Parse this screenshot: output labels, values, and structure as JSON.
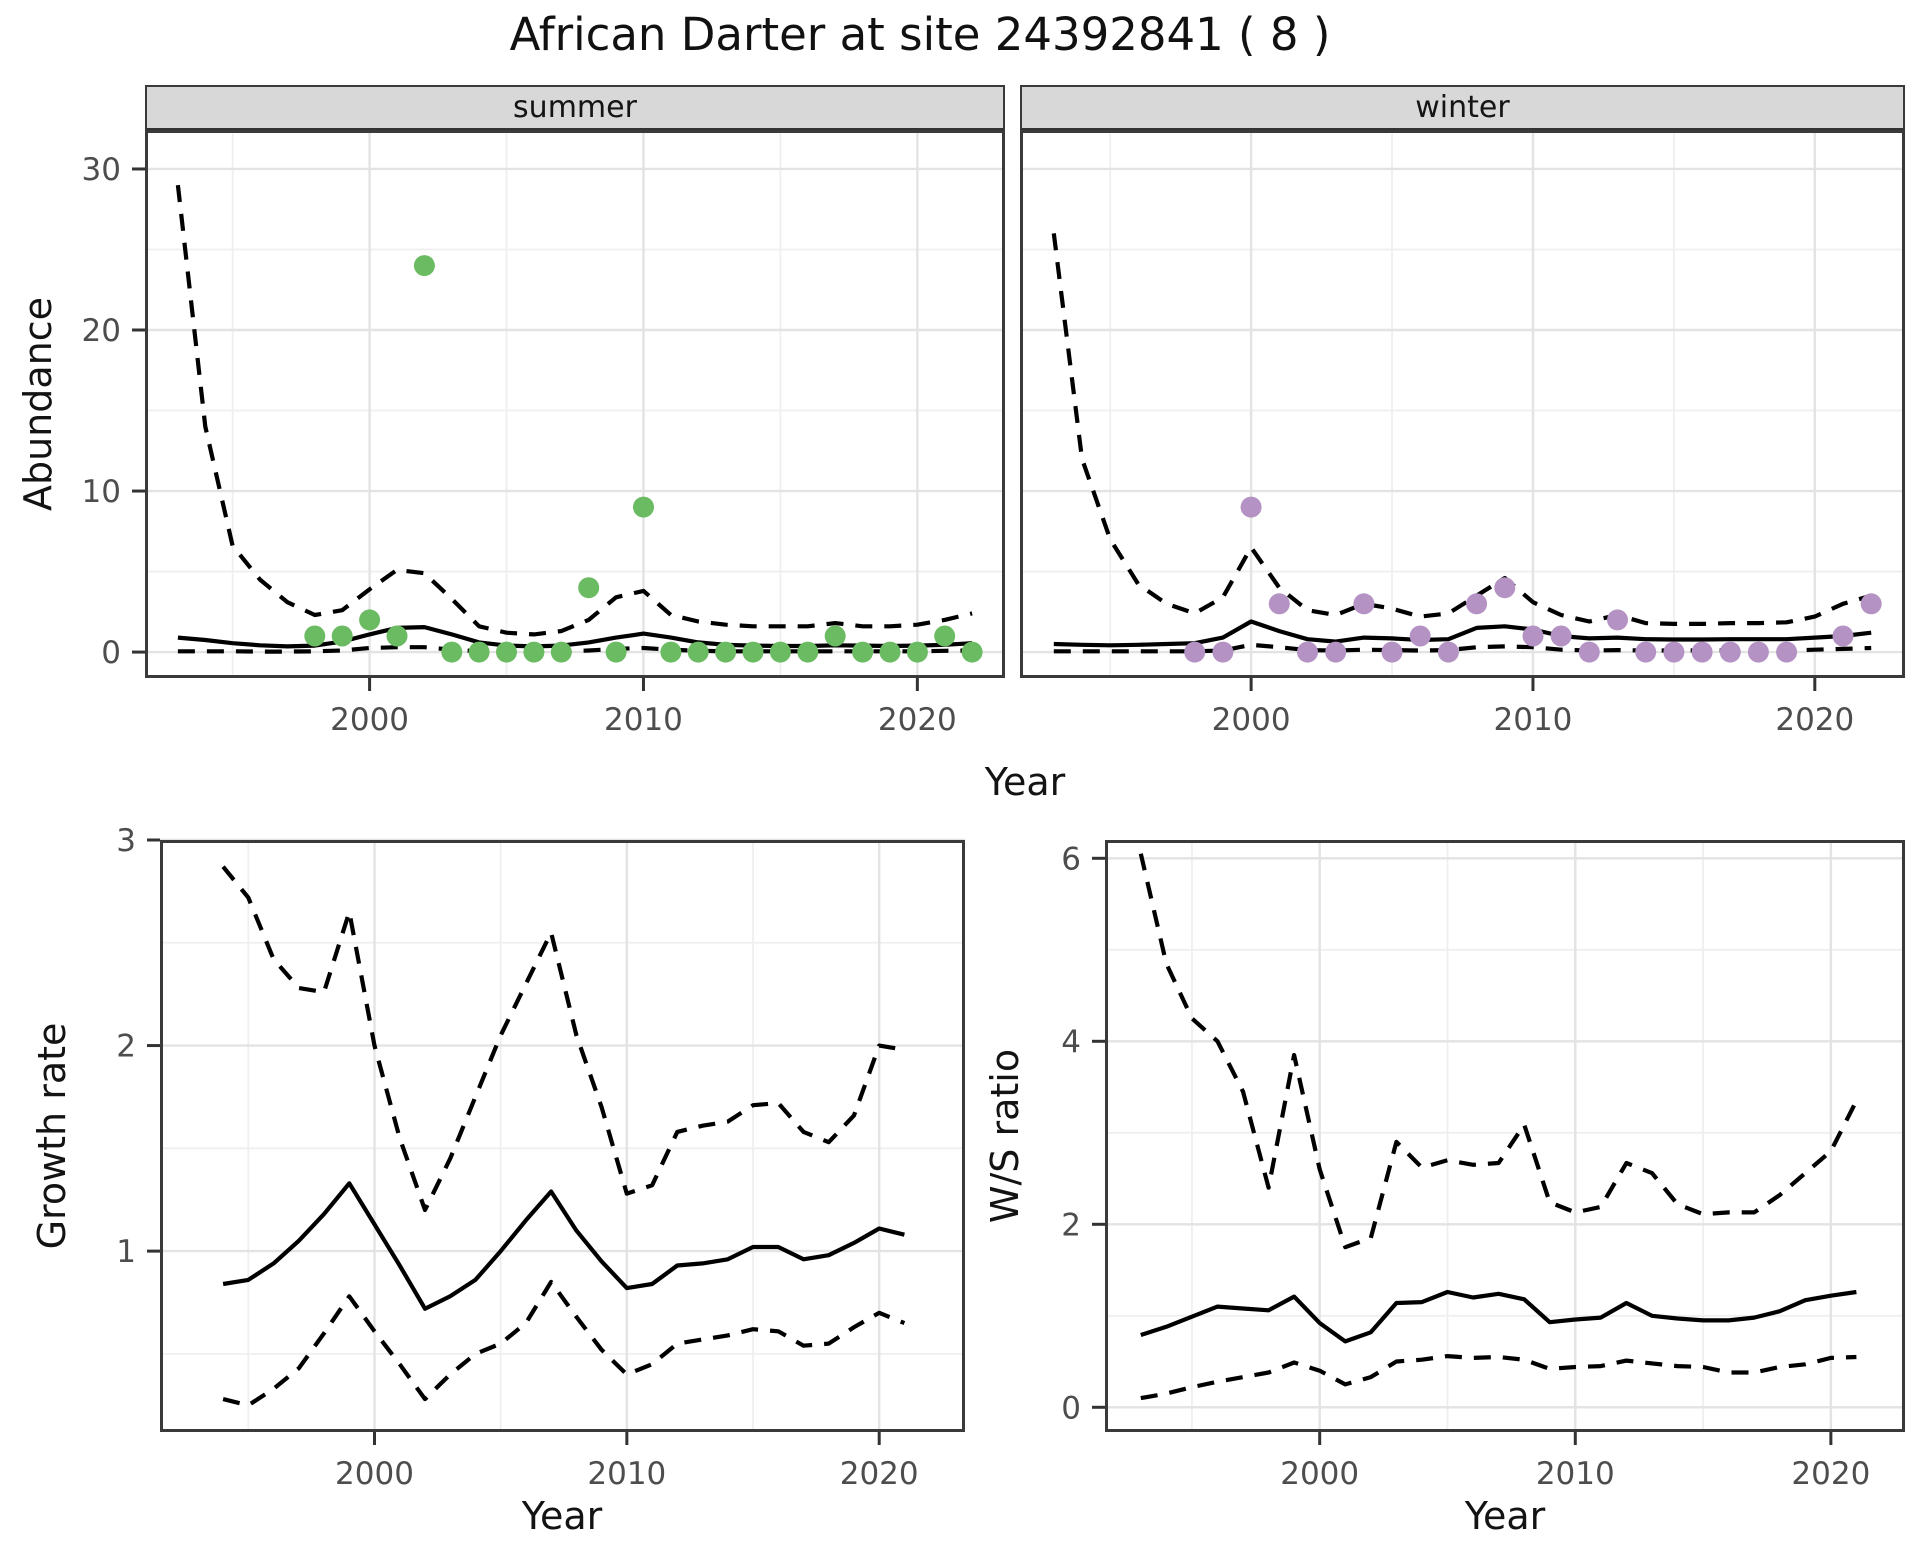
{
  "title": "African Darter at site 24392841 ( 8 )",
  "labels": {
    "abundance": "Abundance",
    "year": "Year",
    "growth_rate": "Growth rate",
    "ws_ratio": "W/S ratio"
  },
  "colors": {
    "summer_points": "#6bbb62",
    "winter_points": "#b492c4",
    "line": "#000000",
    "strip_bg": "#d8d8d8",
    "grid_major": "#e3e3e3",
    "grid_minor": "#efefef",
    "panel_border": "#3a3a3a",
    "tick_text": "#4d4d4d"
  },
  "chart_data": [
    {
      "id": "abundance-summer",
      "type": "line",
      "facet_label": "summer",
      "xlabel": "Year",
      "ylabel": "Abundance",
      "xlim": [
        1991.8,
        2023.2
      ],
      "ylim": [
        -1.61,
        32.42
      ],
      "xticks": [
        2000,
        2010,
        2020
      ],
      "yticks": [
        0,
        10,
        20,
        30
      ],
      "xminor": [
        1995,
        2005,
        2015
      ],
      "yminor": [
        5,
        15,
        25
      ],
      "x": [
        1993,
        1994,
        1995,
        1996,
        1997,
        1998,
        1999,
        2000,
        2001,
        2002,
        2003,
        2004,
        2005,
        2006,
        2007,
        2008,
        2009,
        2010,
        2011,
        2012,
        2013,
        2014,
        2015,
        2016,
        2017,
        2018,
        2019,
        2020,
        2021,
        2022
      ],
      "series": [
        {
          "name": "mean",
          "style": "solid",
          "values": [
            0.9,
            0.75,
            0.55,
            0.42,
            0.35,
            0.4,
            0.65,
            1.1,
            1.5,
            1.55,
            1.1,
            0.6,
            0.4,
            0.35,
            0.4,
            0.6,
            0.9,
            1.15,
            0.9,
            0.6,
            0.45,
            0.4,
            0.38,
            0.38,
            0.42,
            0.4,
            0.38,
            0.4,
            0.45,
            0.55
          ]
        },
        {
          "name": "upper-ci",
          "style": "dashed",
          "values": [
            29,
            14,
            6.6,
            4.5,
            3.1,
            2.3,
            2.6,
            3.9,
            5.1,
            4.9,
            3.3,
            1.6,
            1.2,
            1.1,
            1.3,
            2.0,
            3.4,
            3.8,
            2.3,
            1.9,
            1.7,
            1.6,
            1.6,
            1.6,
            1.8,
            1.6,
            1.6,
            1.7,
            2.0,
            2.4
          ]
        },
        {
          "name": "lower-ci",
          "style": "dashed",
          "values": [
            0.05,
            0.05,
            0.05,
            0.03,
            0.03,
            0.05,
            0.1,
            0.25,
            0.3,
            0.3,
            0.15,
            0.05,
            0.03,
            0.03,
            0.03,
            0.1,
            0.2,
            0.25,
            0.15,
            0.08,
            0.05,
            0.05,
            0.05,
            0.05,
            0.05,
            0.05,
            0.05,
            0.05,
            0.08,
            0.1
          ]
        }
      ],
      "points": {
        "color": "#6bbb62",
        "x": [
          1998,
          1999,
          2000,
          2001,
          2002,
          2003,
          2004,
          2005,
          2006,
          2007,
          2008,
          2009,
          2010,
          2011,
          2012,
          2013,
          2014,
          2015,
          2016,
          2017,
          2018,
          2019,
          2020,
          2021,
          2022
        ],
        "y": [
          1,
          1,
          2,
          1,
          24,
          0,
          0,
          0,
          0,
          0,
          4,
          0,
          9,
          0,
          0,
          0,
          0,
          0,
          0,
          1,
          0,
          0,
          0,
          1,
          0
        ]
      }
    },
    {
      "id": "abundance-winter",
      "type": "line",
      "facet_label": "winter",
      "xlabel": "Year",
      "ylabel": "Abundance",
      "xlim": [
        1991.8,
        2023.2
      ],
      "ylim": [
        -1.61,
        32.42
      ],
      "xticks": [
        2000,
        2010,
        2020
      ],
      "yticks": [
        0,
        10,
        20,
        30
      ],
      "xminor": [
        1995,
        2005,
        2015
      ],
      "yminor": [
        5,
        15,
        25
      ],
      "x": [
        1993,
        1994,
        1995,
        1996,
        1997,
        1998,
        1999,
        2000,
        2001,
        2002,
        2003,
        2004,
        2005,
        2006,
        2007,
        2008,
        2009,
        2010,
        2011,
        2012,
        2013,
        2014,
        2015,
        2016,
        2017,
        2018,
        2019,
        2020,
        2021,
        2022
      ],
      "series": [
        {
          "name": "mean",
          "style": "solid",
          "values": [
            0.5,
            0.45,
            0.42,
            0.45,
            0.5,
            0.55,
            0.9,
            1.9,
            1.3,
            0.8,
            0.65,
            0.9,
            0.85,
            0.75,
            0.8,
            1.5,
            1.6,
            1.4,
            1.0,
            0.85,
            0.9,
            0.8,
            0.78,
            0.78,
            0.8,
            0.8,
            0.8,
            0.9,
            1.0,
            1.2
          ]
        },
        {
          "name": "upper-ci",
          "style": "dashed",
          "values": [
            26,
            12,
            7,
            4.2,
            3.0,
            2.4,
            3.4,
            6.5,
            4.0,
            2.6,
            2.3,
            3.0,
            2.7,
            2.2,
            2.4,
            3.5,
            4.6,
            3.1,
            2.3,
            1.9,
            2.3,
            1.8,
            1.75,
            1.75,
            1.8,
            1.8,
            1.85,
            2.2,
            3.0,
            3.5
          ]
        },
        {
          "name": "lower-ci",
          "style": "dashed",
          "values": [
            0.05,
            0.05,
            0.05,
            0.05,
            0.05,
            0.05,
            0.1,
            0.45,
            0.3,
            0.12,
            0.1,
            0.15,
            0.12,
            0.1,
            0.12,
            0.3,
            0.35,
            0.3,
            0.15,
            0.1,
            0.12,
            0.1,
            0.1,
            0.1,
            0.1,
            0.1,
            0.1,
            0.15,
            0.2,
            0.25
          ]
        }
      ],
      "points": {
        "color": "#b492c4",
        "x": [
          1998,
          1999,
          2000,
          2001,
          2002,
          2003,
          2004,
          2005,
          2006,
          2007,
          2008,
          2009,
          2010,
          2011,
          2012,
          2013,
          2014,
          2015,
          2016,
          2017,
          2018,
          2019,
          2021,
          2022
        ],
        "y": [
          0,
          0,
          9,
          3,
          0,
          0,
          3,
          0,
          1,
          0,
          3,
          4,
          1,
          1,
          0,
          2,
          0,
          0,
          0,
          0,
          0,
          0,
          1,
          3
        ]
      }
    },
    {
      "id": "growth-rate",
      "type": "line",
      "facet_label": "",
      "xlabel": "Year",
      "ylabel": "Growth rate",
      "xlim": [
        1991.5,
        2023.4
      ],
      "ylim": [
        0.12,
        3.0
      ],
      "xticks": [
        2000,
        2010,
        2020
      ],
      "yticks": [
        1,
        2,
        3
      ],
      "xminor": [
        1995,
        2005,
        2015
      ],
      "yminor": [
        0.5,
        1.5,
        2.5
      ],
      "x": [
        1994,
        1995,
        1996,
        1997,
        1998,
        1999,
        2000,
        2001,
        2002,
        2003,
        2004,
        2005,
        2006,
        2007,
        2008,
        2009,
        2010,
        2011,
        2012,
        2013,
        2014,
        2015,
        2016,
        2017,
        2018,
        2019,
        2020,
        2021
      ],
      "series": [
        {
          "name": "mean",
          "style": "solid",
          "values": [
            0.84,
            0.86,
            0.94,
            1.05,
            1.18,
            1.33,
            1.13,
            0.93,
            0.72,
            0.78,
            0.86,
            1.0,
            1.15,
            1.29,
            1.1,
            0.95,
            0.82,
            0.84,
            0.93,
            0.94,
            0.96,
            1.02,
            1.02,
            0.96,
            0.98,
            1.04,
            1.11,
            1.08
          ]
        },
        {
          "name": "upper-ci",
          "style": "dashed",
          "values": [
            2.87,
            2.72,
            2.42,
            2.28,
            2.26,
            2.65,
            2.0,
            1.55,
            1.2,
            1.45,
            1.75,
            2.05,
            2.3,
            2.55,
            2.05,
            1.7,
            1.28,
            1.32,
            1.58,
            1.61,
            1.63,
            1.71,
            1.72,
            1.58,
            1.53,
            1.66,
            2.0,
            1.98
          ]
        },
        {
          "name": "lower-ci",
          "style": "dashed",
          "values": [
            0.28,
            0.25,
            0.33,
            0.43,
            0.6,
            0.78,
            0.61,
            0.45,
            0.28,
            0.4,
            0.5,
            0.55,
            0.65,
            0.85,
            0.68,
            0.52,
            0.4,
            0.45,
            0.55,
            0.57,
            0.59,
            0.62,
            0.61,
            0.54,
            0.55,
            0.63,
            0.7,
            0.65
          ]
        }
      ]
    },
    {
      "id": "ws-ratio",
      "type": "line",
      "facet_label": "",
      "xlabel": "Year",
      "ylabel": "W/S ratio",
      "xlim": [
        1991.6,
        2022.9
      ],
      "ylim": [
        -0.27,
        6.2
      ],
      "xticks": [
        2000,
        2010,
        2020
      ],
      "yticks": [
        0,
        2,
        4,
        6
      ],
      "xminor": [
        1995,
        2005,
        2015
      ],
      "yminor": [
        1,
        3,
        5
      ],
      "x": [
        1993,
        1994,
        1995,
        1996,
        1997,
        1998,
        1999,
        2000,
        2001,
        2002,
        2003,
        2004,
        2005,
        2006,
        2007,
        2008,
        2009,
        2010,
        2011,
        2012,
        2013,
        2014,
        2015,
        2016,
        2017,
        2018,
        2019,
        2020,
        2021
      ],
      "series": [
        {
          "name": "mean",
          "style": "solid",
          "values": [
            0.79,
            0.88,
            0.99,
            1.1,
            1.08,
            1.06,
            1.21,
            0.92,
            0.72,
            0.82,
            1.14,
            1.15,
            1.26,
            1.2,
            1.24,
            1.18,
            0.93,
            0.96,
            0.98,
            1.14,
            1.0,
            0.97,
            0.95,
            0.95,
            0.98,
            1.05,
            1.17,
            1.22,
            1.26
          ]
        },
        {
          "name": "upper-ci",
          "style": "dashed",
          "values": [
            6.05,
            4.85,
            4.25,
            4.0,
            3.45,
            2.4,
            3.85,
            2.6,
            1.75,
            1.85,
            2.9,
            2.62,
            2.7,
            2.65,
            2.67,
            3.09,
            2.24,
            2.13,
            2.19,
            2.67,
            2.56,
            2.22,
            2.11,
            2.13,
            2.13,
            2.32,
            2.56,
            2.8,
            3.35
          ]
        },
        {
          "name": "lower-ci",
          "style": "dashed",
          "values": [
            0.1,
            0.15,
            0.22,
            0.28,
            0.33,
            0.38,
            0.49,
            0.4,
            0.25,
            0.33,
            0.5,
            0.52,
            0.56,
            0.54,
            0.55,
            0.52,
            0.42,
            0.44,
            0.45,
            0.51,
            0.48,
            0.45,
            0.44,
            0.38,
            0.38,
            0.44,
            0.47,
            0.54,
            0.55
          ]
        }
      ]
    }
  ]
}
